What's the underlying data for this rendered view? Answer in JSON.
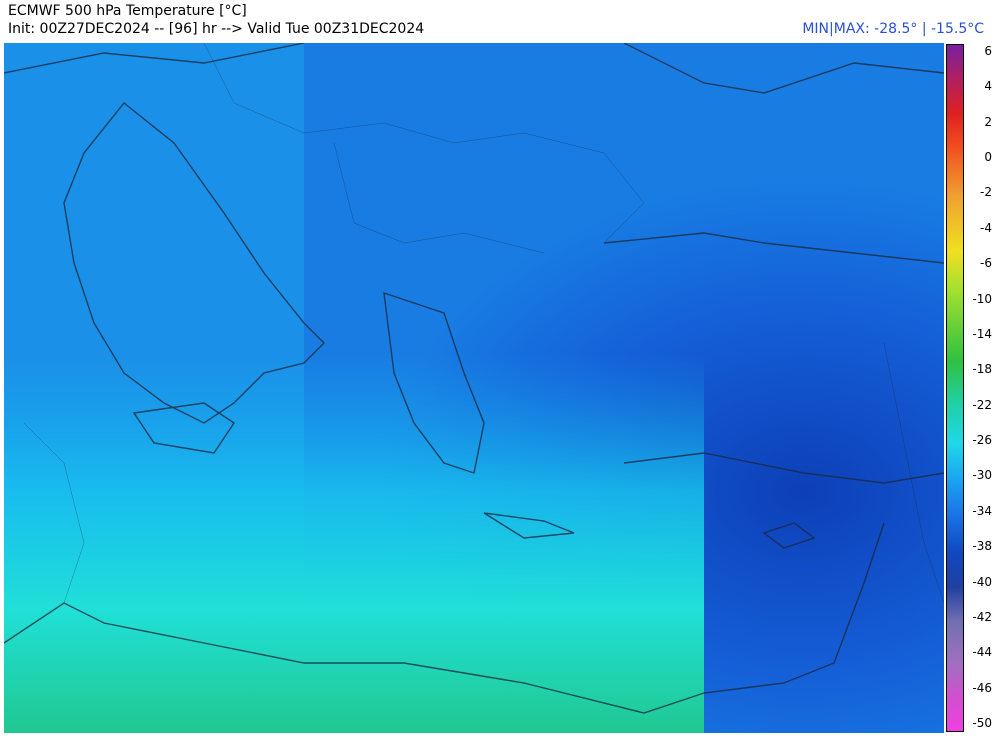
{
  "header": {
    "title": "ECMWF 500 hPa Temperature [°C]",
    "subtitle": "Init: 00Z27DEC2024 -- [96] hr --> Valid Tue 00Z31DEC2024",
    "minmax": "MIN|MAX: -28.5° | -15.5°C"
  },
  "colorbar": {
    "labels": [
      6,
      4,
      2,
      0,
      -2,
      -4,
      -6,
      -10,
      -14,
      -18,
      -22,
      -26,
      -30,
      -34,
      -38,
      -40,
      -42,
      -44,
      -46,
      -50
    ]
  }
}
